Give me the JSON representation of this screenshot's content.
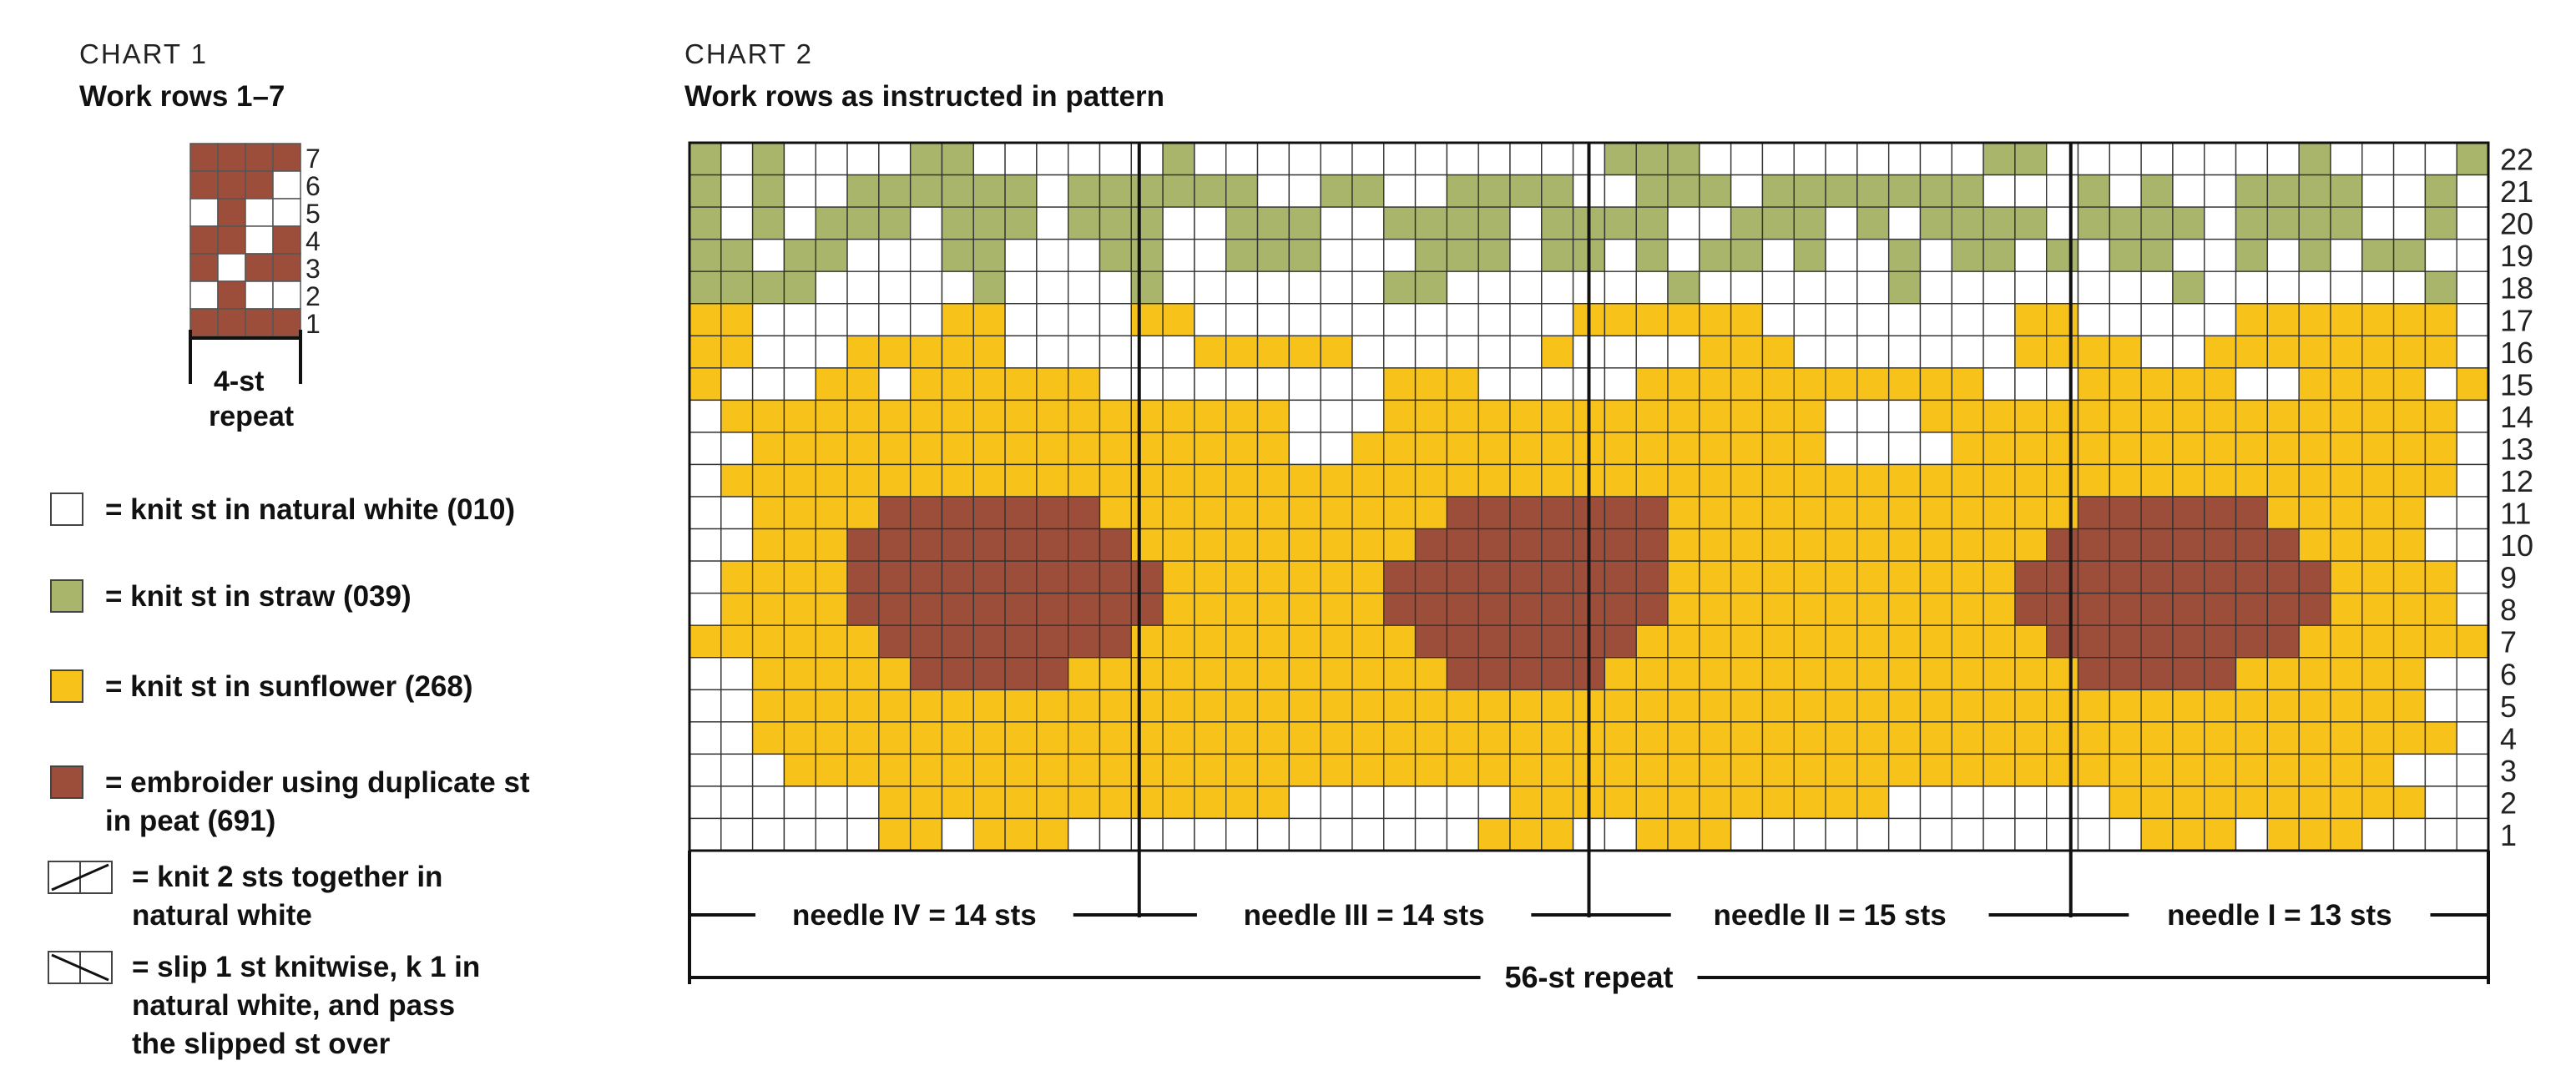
{
  "colors": {
    "white": "#ffffff",
    "straw": "#a9b56b",
    "sunflower": "#f7c31b",
    "peat": "#9c4e3a",
    "grid": "#222222"
  },
  "chart1": {
    "header": "CHART 1",
    "subtitle": "Work rows 1–7",
    "repeat_line1": "4-st",
    "repeat_line2": "repeat",
    "row_numbers": [
      "7",
      "6",
      "5",
      "4",
      "3",
      "2",
      "1"
    ],
    "grid": [
      "pppp",
      "pppw",
      "wpww",
      "ppwp",
      "pwpp",
      "wpww",
      "pppp"
    ]
  },
  "key": [
    {
      "swatch": "white",
      "text": "= knit st in natural white (010)"
    },
    {
      "swatch": "straw",
      "text": "= knit st in straw (039)"
    },
    {
      "swatch": "sunflower",
      "text": "= knit st in sunflower (268)"
    },
    {
      "swatch": "peat",
      "text": "= embroider using duplicate st",
      "text2": "in peat (691)"
    },
    {
      "icon": "k2tog-icon",
      "text": "= knit 2 sts together in",
      "text2": "natural white"
    },
    {
      "icon": "skp-icon",
      "text": "= slip 1 st knitwise, k 1 in",
      "text2": "natural white, and pass",
      "text3": "the slipped st over"
    }
  ],
  "chart2": {
    "header": "CHART 2",
    "subtitle": "Work rows as instructed in pattern",
    "row_numbers": [
      "22",
      "21",
      "20",
      "19",
      "18",
      "17",
      "16",
      "15",
      "14",
      "13",
      "12",
      "11",
      "10",
      "9",
      "8",
      "7",
      "6",
      "5",
      "4",
      "3",
      "2",
      "1"
    ],
    "needles": [
      {
        "label": "needle IV = 14 sts"
      },
      {
        "label": "needle III = 14 sts"
      },
      {
        "label": "needle II = 15 sts"
      },
      {
        "label": "needle I = 13 sts"
      }
    ],
    "repeat_label": "56-st repeat",
    "grid": [
      "gwgwwwwggwwwwwwgwwwwwwwwwwwwwgggwwwwwwwwwggwwwwwwwwgwwwwg",
      "gwgwwggggggwggggggwwggwwggggwwgggwgggggggwwwgwgwwggggwwg",
      "gwgwgggwgggwgggwwgggwwggggwggggwwgggwgwggggwggggwggggwwg",
      "ggwggwwwggwwwggwwgggwwwgggwggwgwggwgwwgwggwgwggwwgwgwggw",
      "ggggwwwwwgwwwwgwwwwwwwggwwwwwwwgwwwwwwgwwwwwwwwgwwwwwwwg",
      "yywwwwwwyywwwwyywwwwwwwwwwwwyyyyyywwwwwwwwyywwwwwyyyyyyy",
      "yywwwyyyyywwwwwwyyyyywwwwwwywwwwyyywwwwwwwyyyywwyyyyyyyy",
      "ywwwyywyyyyyywwwwwwwwwyyywwwwwyyyyyyyyyyywwwyyyyywwyyyywy",
      "wyyyyyyyyyyyyyyyyyywwwyyyyyyyyyyyyyywwwyyyyyyyyyyyyyyyyyw",
      "wwyyyyyyyyyyyyyyyyywwyyyyyyyyyyyyyyywwwwyyyyyyyyyyyyyyyyw",
      "wyyyyyyyyyyyyyyyyyyyyyyyyyyyyyyyyyyyyyyyyyyyyyyyyyyyyyyyw",
      "wwyyyypppppppyyyyyyyyyyypppppppyyyyyyyyyyyyyppppppyyyyyww",
      "wwyyypppppppppyyyyyyyyyppppppppyyyyyyyyyyyyppppppppyyyyww",
      "wyyyyppppppppppyyyyyyypppppppppyyyyyyyyyyyppppppppppyyyyw",
      "wyyyyppppppppppyyyyyyypppppppppyyyyyyyyyyyppppppppppyyyyw",
      "yyyyyyppppppppyyyyyyyyypppppppyyyyyyyyyyyyyppppppppyyyyyy",
      "wwyyyyypppppyyyyyyyyyyyypppppyyyyyyyyyyyyyyypppppyyyyyyww",
      "wwyyyyyyyyyyyyyyyyyyyyyyyyyyyyyyyyyyyyyyyyyyyyyyyyyyyyyww",
      "wwyyyyyyyyyyyyyyyyyyyyyyyyyyyyyyyyyyyyyyyyyyyyyyyyyyyyyyw",
      "wwwyyyyyyyyyyyyyyyyyyyyyyyyyyyyyyyyyyyyyyyyyyyyyyyyyyywww",
      "wwwwwwyyyyyyyyyyyyywwwwwwwyyyyyyyyyyyywwwwwwwyyyyyyyyyyww",
      "wwwwwwyywyyywwwwwwwwwwwwwyyywwyyywwwwwwwwwwwwwyyywyyywwww"
    ]
  }
}
